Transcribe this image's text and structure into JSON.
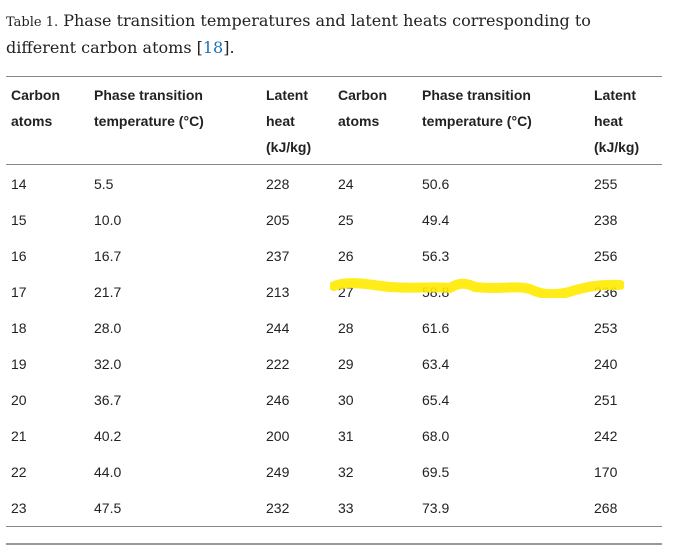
{
  "caption": {
    "label": "Table 1.",
    "text": " Phase transition temperatures and latent heats corresponding to different carbon atoms [",
    "ref": "18",
    "after": "]."
  },
  "table": {
    "headers": [
      [
        "Carbon",
        "atoms"
      ],
      [
        "Phase transition",
        "temperature (°C)"
      ],
      [
        "Latent",
        "heat",
        "(kJ/kg)"
      ],
      [
        "Carbon",
        "atoms"
      ],
      [
        "Phase transition",
        "temperature (°C)"
      ],
      [
        "Latent",
        "heat",
        "(kJ/kg)"
      ]
    ],
    "rows": [
      [
        "14",
        "5.5",
        "228",
        "24",
        "50.6",
        "255"
      ],
      [
        "15",
        "10.0",
        "205",
        "25",
        "49.4",
        "238"
      ],
      [
        "16",
        "16.7",
        "237",
        "26",
        "56.3",
        "256"
      ],
      [
        "17",
        "21.7",
        "213",
        "27",
        "58.8",
        "236"
      ],
      [
        "18",
        "28.0",
        "244",
        "28",
        "61.6",
        "253"
      ],
      [
        "19",
        "32.0",
        "222",
        "29",
        "63.4",
        "240"
      ],
      [
        "20",
        "36.7",
        "246",
        "30",
        "65.4",
        "251"
      ],
      [
        "21",
        "40.2",
        "200",
        "31",
        "68.0",
        "242"
      ],
      [
        "22",
        "44.0",
        "249",
        "32",
        "69.5",
        "170"
      ],
      [
        "23",
        "47.5",
        "232",
        "33",
        "73.9",
        "268"
      ]
    ]
  },
  "colors": {
    "highlight": "#ffea00",
    "link": "#1a73b5",
    "rule": "#888888"
  }
}
